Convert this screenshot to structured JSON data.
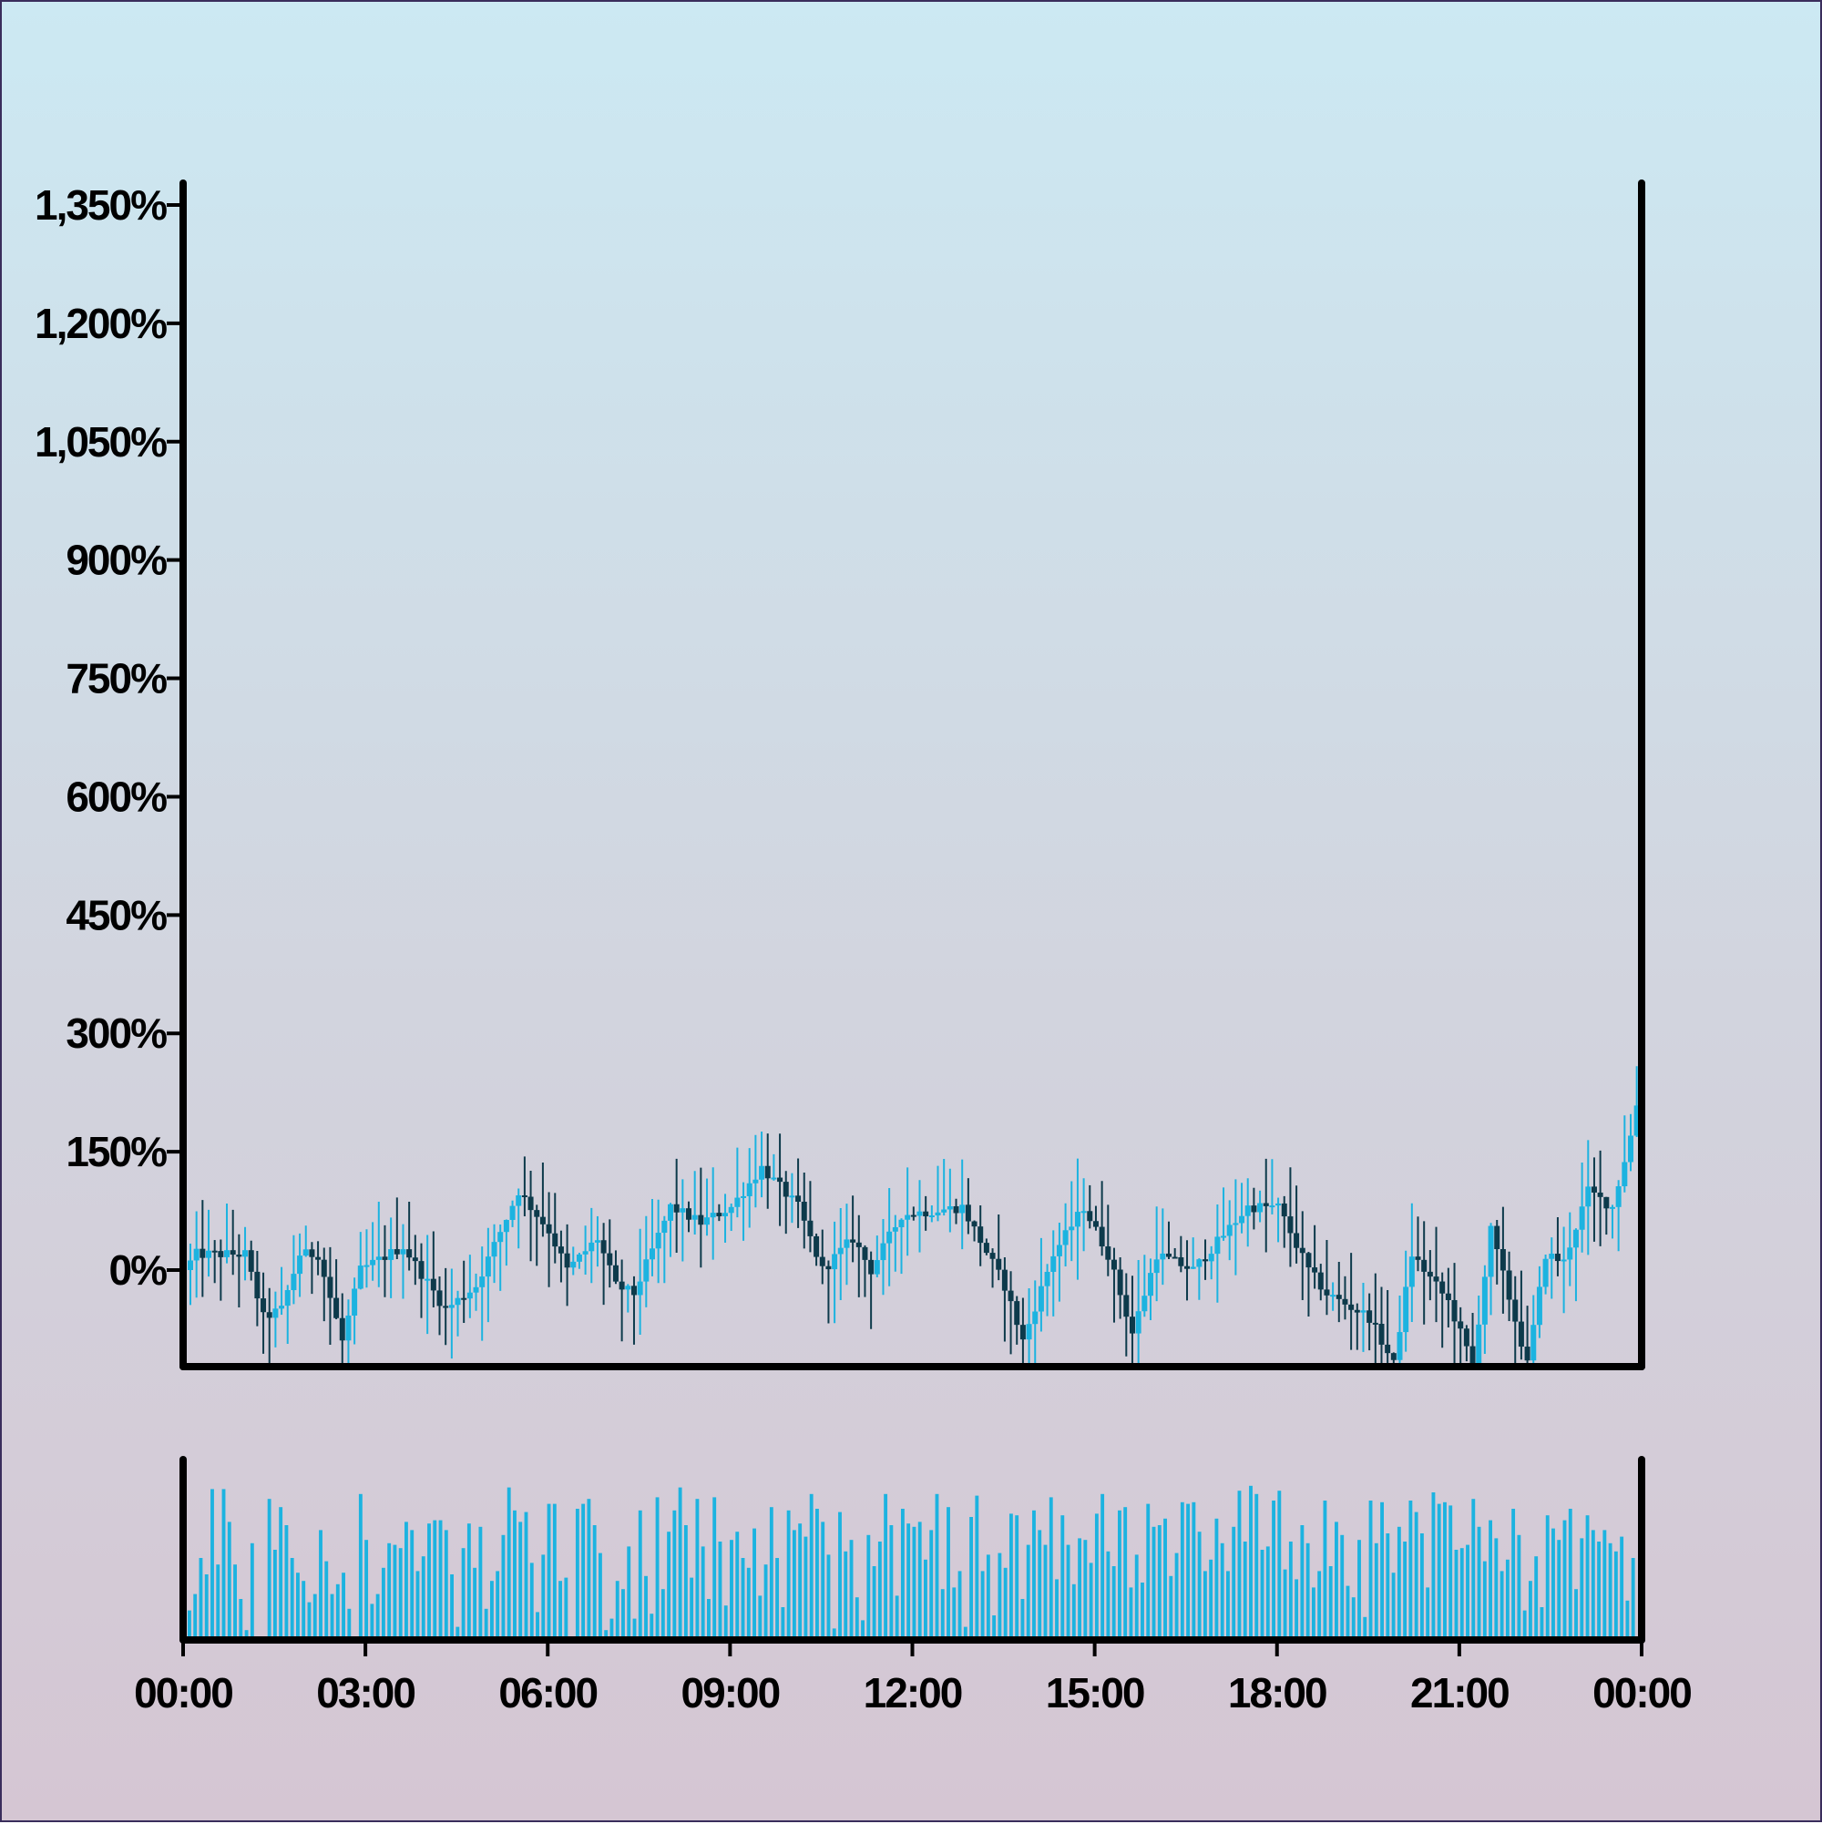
{
  "colors": {
    "up": "#1cb3e0",
    "down": "#0d3a4b",
    "volume": "#1cb3e0",
    "axis": "#000000"
  },
  "chart_data": {
    "type": "candlestick",
    "title": "",
    "xlabel": "",
    "ylabel": "",
    "y_ticks": [
      "1,350%",
      "1,200%",
      "1,050%",
      "900%",
      "750%",
      "600%",
      "450%",
      "300%",
      "150%",
      "0%"
    ],
    "y_tick_values": [
      1350,
      1200,
      1050,
      900,
      750,
      600,
      450,
      300,
      150,
      0
    ],
    "ylim": [
      -120,
      1380
    ],
    "x_ticks": [
      "00:00",
      "03:00",
      "06:00",
      "09:00",
      "12:00",
      "15:00",
      "18:00",
      "21:00",
      "00:00"
    ],
    "x_range_hours": [
      0,
      24
    ],
    "candle_count": 240,
    "price_path_anchors": [
      {
        "h": 0.0,
        "v": 0
      },
      {
        "h": 0.2,
        "v": 20
      },
      {
        "h": 1.0,
        "v": 20
      },
      {
        "h": 1.3,
        "v": -60
      },
      {
        "h": 1.6,
        "v": -50
      },
      {
        "h": 1.9,
        "v": 20
      },
      {
        "h": 2.2,
        "v": 20
      },
      {
        "h": 2.6,
        "v": -90
      },
      {
        "h": 2.9,
        "v": 0
      },
      {
        "h": 3.6,
        "v": 30
      },
      {
        "h": 4.3,
        "v": -50
      },
      {
        "h": 4.8,
        "v": -20
      },
      {
        "h": 5.5,
        "v": 100
      },
      {
        "h": 6.0,
        "v": 50
      },
      {
        "h": 6.3,
        "v": 0
      },
      {
        "h": 6.8,
        "v": 40
      },
      {
        "h": 7.1,
        "v": -20
      },
      {
        "h": 7.4,
        "v": -30
      },
      {
        "h": 8.0,
        "v": 80
      },
      {
        "h": 8.5,
        "v": 60
      },
      {
        "h": 9.0,
        "v": 80
      },
      {
        "h": 9.5,
        "v": 130
      },
      {
        "h": 10.1,
        "v": 80
      },
      {
        "h": 10.5,
        "v": 0
      },
      {
        "h": 11.0,
        "v": 40
      },
      {
        "h": 11.3,
        "v": 0
      },
      {
        "h": 11.8,
        "v": 70
      },
      {
        "h": 12.8,
        "v": 80
      },
      {
        "h": 13.5,
        "v": -20
      },
      {
        "h": 13.8,
        "v": -90
      },
      {
        "h": 14.3,
        "v": 20
      },
      {
        "h": 14.8,
        "v": 80
      },
      {
        "h": 15.2,
        "v": 20
      },
      {
        "h": 15.6,
        "v": -80
      },
      {
        "h": 16.0,
        "v": 20
      },
      {
        "h": 16.6,
        "v": 0
      },
      {
        "h": 17.5,
        "v": 80
      },
      {
        "h": 18.0,
        "v": 80
      },
      {
        "h": 18.5,
        "v": 0
      },
      {
        "h": 18.8,
        "v": -30
      },
      {
        "h": 19.5,
        "v": -60
      },
      {
        "h": 19.9,
        "v": -120
      },
      {
        "h": 20.2,
        "v": 20
      },
      {
        "h": 20.8,
        "v": -40
      },
      {
        "h": 21.2,
        "v": -120
      },
      {
        "h": 21.5,
        "v": 50
      },
      {
        "h": 22.1,
        "v": -120
      },
      {
        "h": 22.4,
        "v": 20
      },
      {
        "h": 22.7,
        "v": 10
      },
      {
        "h": 23.1,
        "v": 100
      },
      {
        "h": 23.5,
        "v": 80
      },
      {
        "h": 23.8,
        "v": 170
      },
      {
        "h": 24.0,
        "v": 250
      }
    ],
    "volume": {
      "shown": true,
      "values": [
        18,
        28,
        50,
        40,
        92,
        46,
        92,
        72,
        46,
        25,
        6,
        59,
        0,
        0,
        86,
        55,
        81,
        70,
        50,
        41,
        36,
        23,
        28,
        67,
        48,
        28,
        34,
        41,
        19,
        0,
        89,
        61,
        22,
        28,
        44,
        59,
        58,
        56,
        72,
        67,
        42,
        51,
        71,
        73,
        73,
        67,
        40,
        8,
        56,
        71,
        44,
        69,
        19,
        36,
        42,
        64,
        93,
        79,
        72,
        78,
        47,
        17,
        52,
        83,
        83,
        36,
        38,
        0,
        80,
        83,
        86,
        70,
        53,
        6,
        13,
        36,
        31,
        57,
        13,
        79,
        39,
        16,
        87,
        31,
        66,
        79,
        93,
        70,
        38,
        86,
        57,
        25,
        87,
        60,
        21,
        61,
        66,
        50,
        44,
        68,
        27,
        46,
        81,
        50,
        20,
        79,
        67,
        71,
        63,
        89,
        80,
        72,
        52,
        7,
        78,
        54,
        61,
        26,
        12,
        64,
        45,
        60,
        89,
        70,
        27,
        80,
        71,
        69,
        72,
        49,
        67,
        89,
        31,
        81,
        32,
        42,
        8,
        75,
        88,
        42,
        52,
        15,
        53,
        44,
        77,
        76,
        25,
        58,
        79,
        67,
        58,
        87,
        37,
        76,
        58,
        34,
        62,
        61,
        47,
        77,
        89,
        54,
        45,
        79,
        81,
        32,
        52,
        35,
        83,
        69,
        70,
        74,
        39,
        53,
        84,
        83,
        84,
        66,
        42,
        49,
        74,
        59,
        42,
        69,
        91,
        60,
        94,
        89,
        55,
        57,
        85,
        91,
        43,
        60,
        37,
        70,
        59,
        32,
        42,
        85,
        45,
        72,
        64,
        33,
        26,
        61,
        14,
        85,
        59,
        84,
        65,
        41,
        69,
        60,
        85,
        78,
        65,
        32,
        90,
        83,
        84,
        82,
        55,
        56,
        58,
        86,
        69,
        48,
        73,
        62,
        42,
        49,
        80,
        64,
        18,
        36,
        51,
        20,
        76,
        68,
        61,
        73,
        80,
        31,
        62,
        76,
        67,
        60,
        67,
        59,
        54,
        63,
        24,
        50
      ]
    },
    "legend": "none",
    "grid": false
  }
}
